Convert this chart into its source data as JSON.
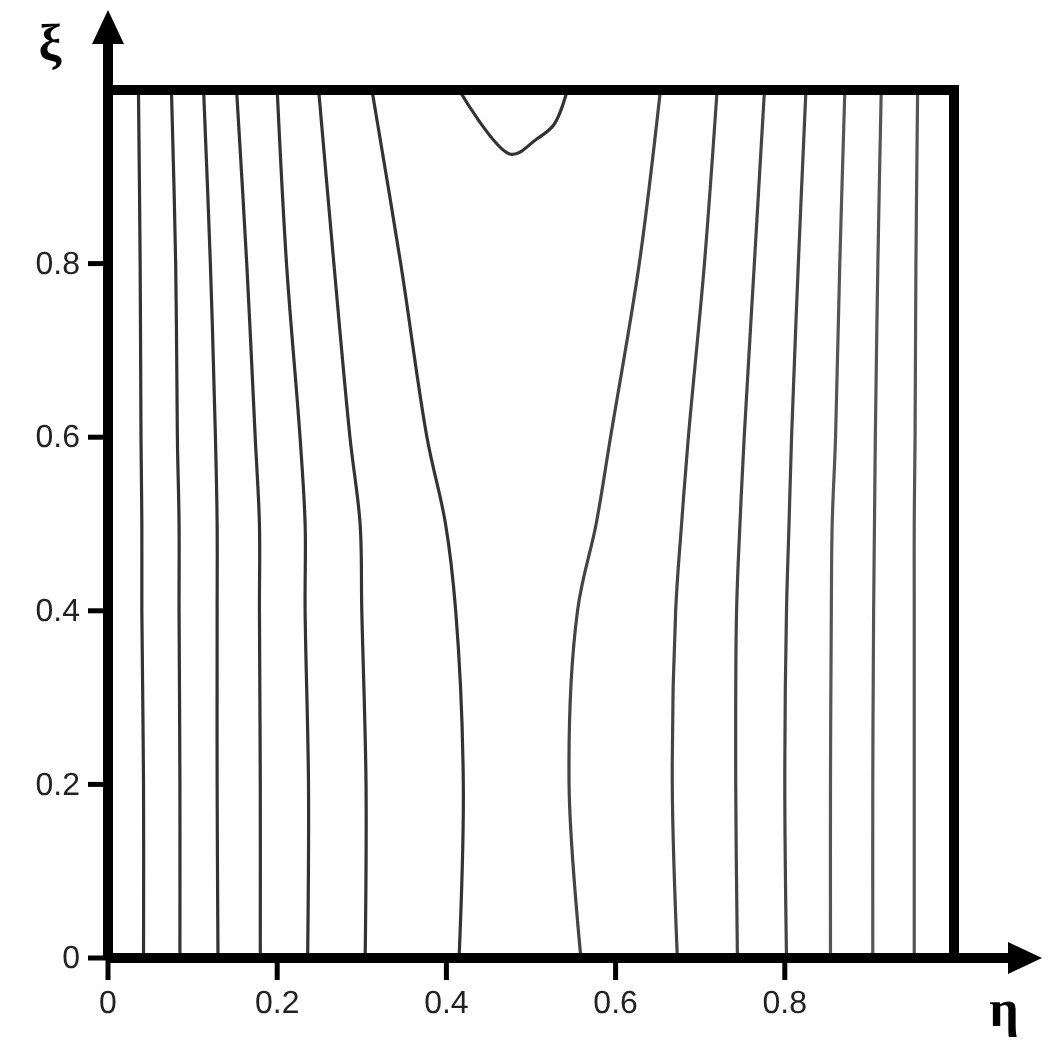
{
  "chart_data": {
    "type": "line",
    "xlabel": "η",
    "ylabel": "ξ",
    "xlim": [
      0,
      1
    ],
    "ylim": [
      0,
      1
    ],
    "xticks": [
      0,
      0.2,
      0.4,
      0.6,
      0.8
    ],
    "yticks": [
      0,
      0.2,
      0.4,
      0.6,
      0.8
    ],
    "series": [
      {
        "color": "#333333",
        "x": [
          0.042,
          0.042,
          0.04,
          0.04,
          0.039,
          0.038,
          0.036
        ],
        "values": [
          0,
          0.2,
          0.4,
          0.5,
          0.6,
          0.8,
          1
        ]
      },
      {
        "color": "#333333",
        "x": [
          0.085,
          0.085,
          0.084,
          0.084,
          0.082,
          0.08,
          0.075
        ],
        "values": [
          0,
          0.2,
          0.4,
          0.5,
          0.6,
          0.8,
          1
        ]
      },
      {
        "color": "#333333",
        "x": [
          0.13,
          0.129,
          0.129,
          0.129,
          0.127,
          0.121,
          0.113
        ],
        "values": [
          0,
          0.2,
          0.4,
          0.5,
          0.6,
          0.8,
          1
        ]
      },
      {
        "color": "#333333",
        "x": [
          0.18,
          0.18,
          0.179,
          0.179,
          0.174,
          0.164,
          0.152
        ],
        "values": [
          0,
          0.2,
          0.4,
          0.5,
          0.6,
          0.8,
          1
        ]
      },
      {
        "color": "#333333",
        "x": [
          0.236,
          0.237,
          0.233,
          0.233,
          0.227,
          0.211,
          0.2
        ],
        "values": [
          0,
          0.2,
          0.4,
          0.5,
          0.6,
          0.8,
          1
        ]
      },
      {
        "color": "#333333",
        "x": [
          0.304,
          0.305,
          0.3,
          0.298,
          0.286,
          0.267,
          0.249
        ],
        "values": [
          0,
          0.2,
          0.4,
          0.5,
          0.6,
          0.8,
          1
        ]
      },
      {
        "color": "#333333",
        "x": [
          0.415,
          0.42,
          0.411,
          0.399,
          0.377,
          0.346,
          0.312
        ],
        "values": [
          0,
          0.2,
          0.4,
          0.5,
          0.6,
          0.8,
          1
        ]
      },
      {
        "color": "#333333",
        "x": [
          0.415,
          0.476,
          0.506,
          0.527,
          0.543
        ],
        "values": [
          1,
          0.926,
          0.943,
          0.96,
          1
        ]
      },
      {
        "color": "#444444",
        "x": [
          0.559,
          0.545,
          0.555,
          0.577,
          0.594,
          0.628,
          0.653
        ],
        "values": [
          0,
          0.2,
          0.4,
          0.5,
          0.6,
          0.8,
          1
        ]
      },
      {
        "color": "#444444",
        "x": [
          0.673,
          0.667,
          0.671,
          0.678,
          0.686,
          0.705,
          0.72
        ],
        "values": [
          0,
          0.2,
          0.4,
          0.5,
          0.6,
          0.8,
          1
        ]
      },
      {
        "color": "#444444",
        "x": [
          0.744,
          0.742,
          0.743,
          0.747,
          0.752,
          0.764,
          0.776
        ],
        "values": [
          0,
          0.2,
          0.4,
          0.5,
          0.6,
          0.8,
          1
        ]
      },
      {
        "color": "#444444",
        "x": [
          0.802,
          0.8,
          0.802,
          0.805,
          0.808,
          0.816,
          0.825
        ],
        "values": [
          0,
          0.2,
          0.4,
          0.5,
          0.6,
          0.8,
          1
        ]
      },
      {
        "color": "#555555",
        "x": [
          0.854,
          0.854,
          0.855,
          0.856,
          0.86,
          0.865,
          0.871
        ],
        "values": [
          0,
          0.2,
          0.4,
          0.5,
          0.6,
          0.8,
          1
        ]
      },
      {
        "color": "#555555",
        "x": [
          0.904,
          0.904,
          0.905,
          0.906,
          0.907,
          0.91,
          0.914
        ],
        "values": [
          0,
          0.2,
          0.4,
          0.5,
          0.6,
          0.8,
          1
        ]
      },
      {
        "color": "#555555",
        "x": [
          0.953,
          0.953,
          0.953,
          0.953,
          0.954,
          0.955,
          0.957
        ],
        "values": [
          0,
          0.2,
          0.4,
          0.5,
          0.6,
          0.8,
          1
        ]
      }
    ]
  }
}
